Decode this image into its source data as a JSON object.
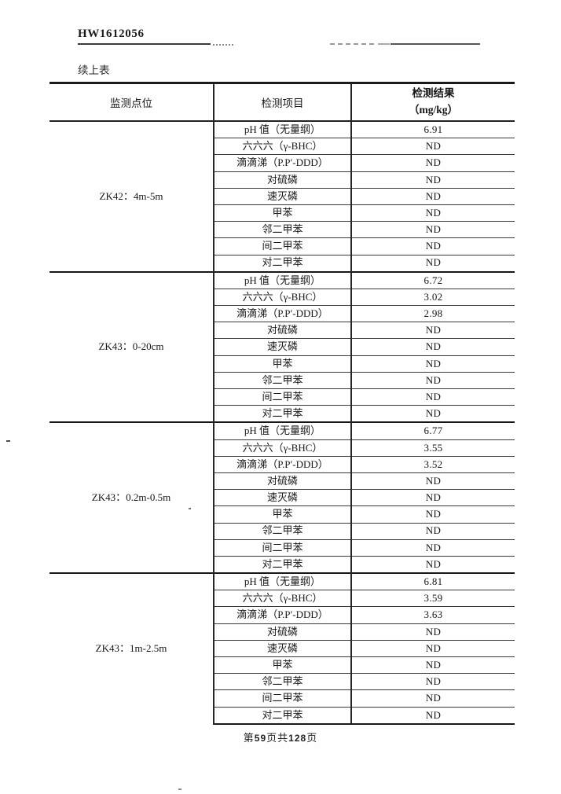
{
  "header": {
    "code": "HW1612056",
    "continued_label": "续上表"
  },
  "table": {
    "col_headers": {
      "point": "监测点位",
      "item": "检测项目",
      "result_line1": "检测结果",
      "result_line2": "（mg/kg）"
    },
    "groups": [
      {
        "point": "ZK42：4m-5m",
        "rows": [
          {
            "item": "pH 值（无量纲）",
            "value": "6.91"
          },
          {
            "item": "六六六（γ-BHC）",
            "value": "ND"
          },
          {
            "item": "滴滴涕（P.P′-DDD）",
            "value": "ND"
          },
          {
            "item": "对硫磷",
            "value": "ND"
          },
          {
            "item": "速灭磷",
            "value": "ND"
          },
          {
            "item": "甲苯",
            "value": "ND"
          },
          {
            "item": "邻二甲苯",
            "value": "ND"
          },
          {
            "item": "间二甲苯",
            "value": "ND"
          },
          {
            "item": "对二甲苯",
            "value": "ND"
          }
        ]
      },
      {
        "point": "ZK43：0-20cm",
        "rows": [
          {
            "item": "pH 值（无量纲）",
            "value": "6.72"
          },
          {
            "item": "六六六（γ-BHC）",
            "value": "3.02"
          },
          {
            "item": "滴滴涕（P.P′-DDD）",
            "value": "2.98"
          },
          {
            "item": "对硫磷",
            "value": "ND"
          },
          {
            "item": "速灭磷",
            "value": "ND"
          },
          {
            "item": "甲苯",
            "value": "ND"
          },
          {
            "item": "邻二甲苯",
            "value": "ND"
          },
          {
            "item": "间二甲苯",
            "value": "ND"
          },
          {
            "item": "对二甲苯",
            "value": "ND"
          }
        ]
      },
      {
        "point": "ZK43：0.2m-0.5m",
        "rows": [
          {
            "item": "pH 值（无量纲）",
            "value": "6.77"
          },
          {
            "item": "六六六（γ-BHC）",
            "value": "3.55"
          },
          {
            "item": "滴滴涕（P.P′-DDD）",
            "value": "3.52"
          },
          {
            "item": "对硫磷",
            "value": "ND"
          },
          {
            "item": "速灭磷",
            "value": "ND"
          },
          {
            "item": "甲苯",
            "value": "ND"
          },
          {
            "item": "邻二甲苯",
            "value": "ND"
          },
          {
            "item": "间二甲苯",
            "value": "ND"
          },
          {
            "item": "对二甲苯",
            "value": "ND"
          }
        ]
      },
      {
        "point": "ZK43：1m-2.5m",
        "rows": [
          {
            "item": "pH 值（无量纲）",
            "value": "6.81"
          },
          {
            "item": "六六六（γ-BHC）",
            "value": "3.59"
          },
          {
            "item": "滴滴涕（P.P′-DDD）",
            "value": "3.63"
          },
          {
            "item": "对硫磷",
            "value": "ND"
          },
          {
            "item": "速灭磷",
            "value": "ND"
          },
          {
            "item": "甲苯",
            "value": "ND"
          },
          {
            "item": "邻二甲苯",
            "value": "ND"
          },
          {
            "item": "间二甲苯",
            "value": "ND"
          },
          {
            "item": "对二甲苯",
            "value": "ND"
          }
        ]
      }
    ]
  },
  "footer": {
    "prefix": "第",
    "page": "59",
    "mid": "页共",
    "total": "128",
    "suffix": "页"
  }
}
